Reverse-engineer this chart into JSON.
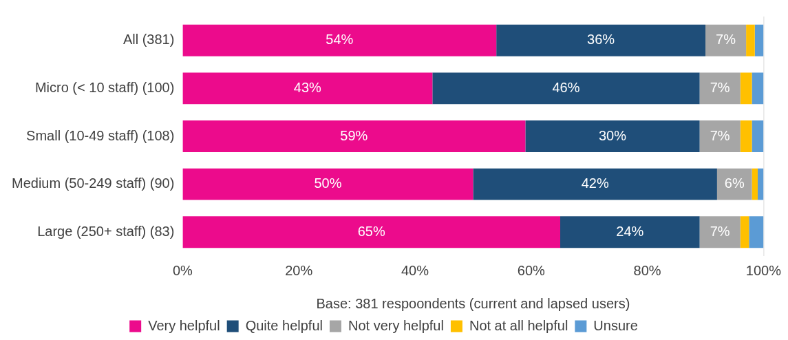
{
  "chart_data": {
    "type": "bar",
    "orientation": "horizontal",
    "stacked": true,
    "categories": [
      "All (381)",
      "Micro (< 10 staff) (100)",
      "Small (10-49 staff) (108)",
      "Medium (50-249 staff) (90)",
      "Large (250+ staff) (83)"
    ],
    "series": [
      {
        "name": "Very helpful",
        "color": "#ec0b8c",
        "values": [
          54,
          43,
          59,
          50,
          65
        ],
        "value_labels": [
          "54%",
          "43%",
          "59%",
          "50%",
          "65%"
        ]
      },
      {
        "name": "Quite helpful",
        "color": "#1f4e79",
        "values": [
          36,
          46,
          30,
          42,
          24
        ],
        "value_labels": [
          "36%",
          "46%",
          "30%",
          "42%",
          "24%"
        ]
      },
      {
        "name": "Not very helpful",
        "color": "#a6a6a6",
        "values": [
          7,
          7,
          7,
          6,
          7
        ],
        "value_labels": [
          "7%",
          "7%",
          "7%",
          "6%",
          "7%"
        ]
      },
      {
        "name": "Not at all helpful",
        "color": "#ffc000",
        "values": [
          1.5,
          2,
          2,
          1,
          1.5
        ]
      },
      {
        "name": "Unsure",
        "color": "#5b9bd5",
        "values": [
          1.5,
          2,
          2,
          1,
          2.5
        ]
      }
    ],
    "xlim": [
      0,
      100
    ],
    "xticks": [
      {
        "value": 0,
        "label": "0%"
      },
      {
        "value": 20,
        "label": "20%"
      },
      {
        "value": 40,
        "label": "40%"
      },
      {
        "value": 60,
        "label": "60%"
      },
      {
        "value": 80,
        "label": "80%"
      },
      {
        "value": 100,
        "label": "100%"
      }
    ],
    "annotations": [
      "Base: 381 respoondents (current and lapsed users)"
    ],
    "legend": "bottom",
    "grid": false
  }
}
